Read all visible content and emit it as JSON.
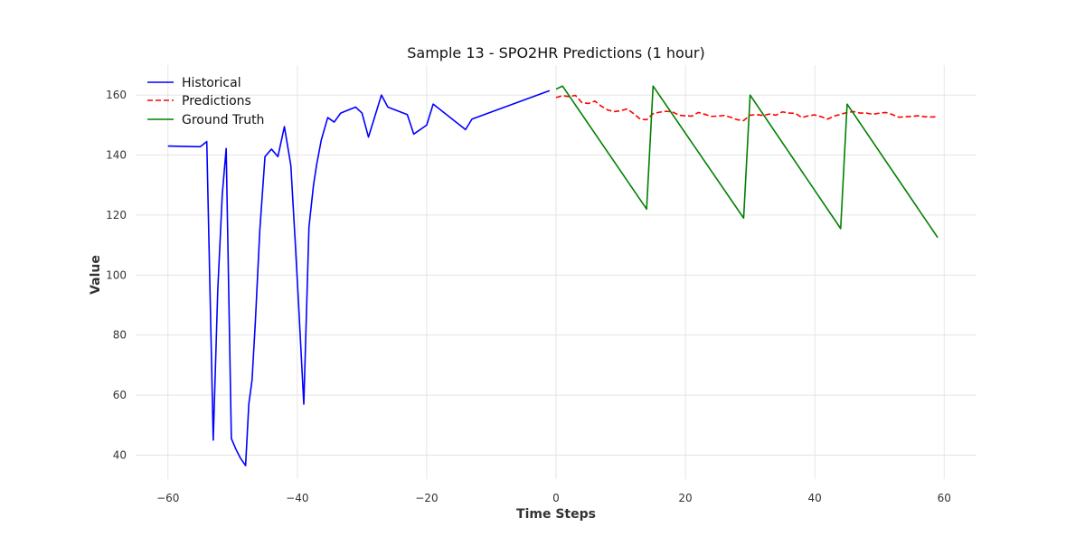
{
  "chart_data": {
    "type": "line",
    "title": "Sample 13 - SPO2HR Predictions (1 hour)",
    "xlabel": "Time Steps",
    "ylabel": "Value",
    "xlim": [
      -65,
      65
    ],
    "ylim": [
      32,
      170
    ],
    "xticks": [
      -60,
      -40,
      -20,
      0,
      20,
      40,
      60
    ],
    "yticks": [
      40,
      60,
      80,
      100,
      120,
      140,
      160
    ],
    "grid": true,
    "legend_position": "top-left",
    "series": [
      {
        "name": "Historical",
        "color": "#0000ff",
        "style": "solid",
        "x": [
          -60,
          -55,
          -54,
          -53,
          -52.3,
          -51.6,
          -51,
          -50.2,
          -49.5,
          -48.8,
          -48,
          -47.5,
          -47,
          -46.5,
          -45.8,
          -45,
          -44,
          -43,
          -42,
          -41,
          -40.3,
          -39.8,
          -39,
          -38.2,
          -37.5,
          -37,
          -36.3,
          -35.3,
          -34.3,
          -33.3,
          -31,
          -30,
          -29,
          -27,
          -26,
          -23,
          -22,
          -20,
          -19,
          -14,
          -13,
          -1
        ],
        "y": [
          143,
          142.8,
          144.5,
          45,
          95,
          127,
          142.2,
          45.5,
          42,
          39,
          36.5,
          57,
          65,
          84,
          115,
          139.5,
          142,
          139.5,
          149.5,
          136.5,
          110,
          90,
          57,
          116,
          130,
          137,
          145,
          152.5,
          151,
          154,
          156,
          154,
          146,
          160,
          156,
          153.5,
          147,
          150,
          157,
          148.5,
          152,
          161.5
        ]
      },
      {
        "name": "Predictions",
        "color": "#ff0000",
        "style": "dashed",
        "x": [
          0,
          1,
          2,
          3,
          4,
          5,
          6,
          7,
          8,
          9,
          10,
          11,
          12,
          13,
          14,
          15,
          16,
          17,
          18,
          19,
          20,
          21,
          22,
          23,
          24,
          25,
          26,
          27,
          28,
          29,
          30,
          31,
          32,
          33,
          34,
          35,
          36,
          37,
          38,
          39,
          40,
          41,
          42,
          43,
          44,
          45,
          46,
          47,
          48,
          49,
          50,
          51,
          52,
          53,
          54,
          55,
          56,
          57,
          58,
          59
        ],
        "y": [
          159.2,
          159.8,
          159.5,
          159.9,
          157.5,
          157.2,
          158,
          156.3,
          155,
          154.5,
          154.8,
          155.4,
          153.8,
          152,
          151.8,
          153.8,
          154.3,
          154.6,
          154.4,
          153.3,
          153.1,
          153,
          154.2,
          153.6,
          152.9,
          153,
          153.2,
          152.6,
          151.8,
          151.5,
          153.3,
          153.5,
          153.2,
          153.7,
          153.3,
          154.4,
          154,
          153.9,
          152.5,
          153.1,
          153.4,
          152.8,
          152,
          153,
          153.6,
          154.2,
          154.5,
          154,
          154,
          153.6,
          154,
          154.2,
          153.5,
          152.6,
          152.8,
          152.9,
          153.1,
          152.8,
          152.7,
          152.8
        ]
      },
      {
        "name": "Ground Truth",
        "color": "#008000",
        "style": "solid",
        "x": [
          0,
          1,
          14,
          15,
          29,
          30,
          44,
          45,
          59
        ],
        "y": [
          162,
          163,
          122,
          163,
          119,
          160,
          115.5,
          157,
          112.5
        ]
      }
    ]
  }
}
